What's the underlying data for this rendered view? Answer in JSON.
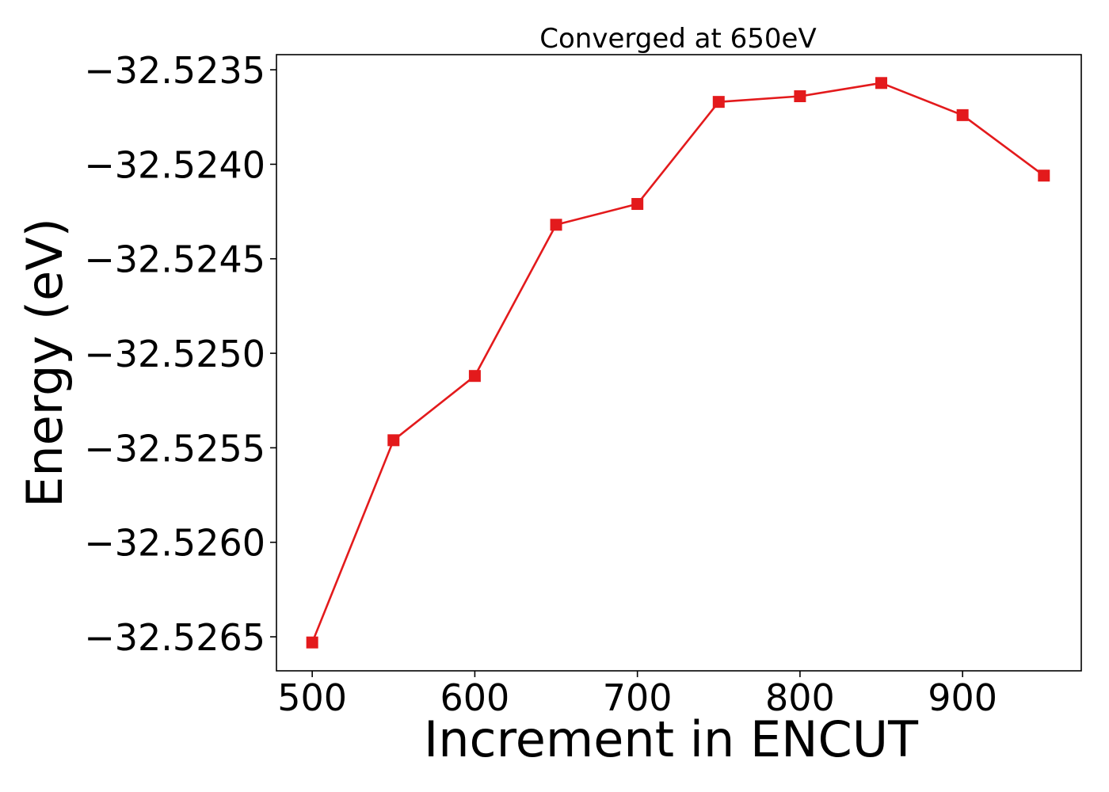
{
  "chart_data": {
    "type": "line",
    "title": "Converged at 650eV",
    "xlabel": "Increment in ENCUT",
    "ylabel": "Energy (eV)",
    "x": [
      500,
      550,
      600,
      650,
      700,
      750,
      800,
      850,
      900,
      950
    ],
    "series": [
      {
        "values": [
          -32.52653,
          -32.52546,
          -32.52512,
          -32.52432,
          -32.52421,
          -32.52367,
          -32.52364,
          -32.52357,
          -32.52374,
          -32.52406
        ],
        "color": "#e31a1c",
        "marker": "square"
      }
    ],
    "xlim": [
      478,
      973
    ],
    "ylim": [
      -32.52668,
      -32.52342
    ],
    "xticks": [
      500,
      600,
      700,
      800,
      900
    ],
    "xtick_labels": [
      "500",
      "600",
      "700",
      "800",
      "900"
    ],
    "yticks": [
      -32.5265,
      -32.526,
      -32.5255,
      -32.525,
      -32.5245,
      -32.524,
      -32.5235
    ],
    "ytick_labels": [
      "−32.5265",
      "−32.5260",
      "−32.5255",
      "−32.5250",
      "−32.5245",
      "−32.5240",
      "−32.5235"
    ],
    "grid": false,
    "legend": false
  }
}
